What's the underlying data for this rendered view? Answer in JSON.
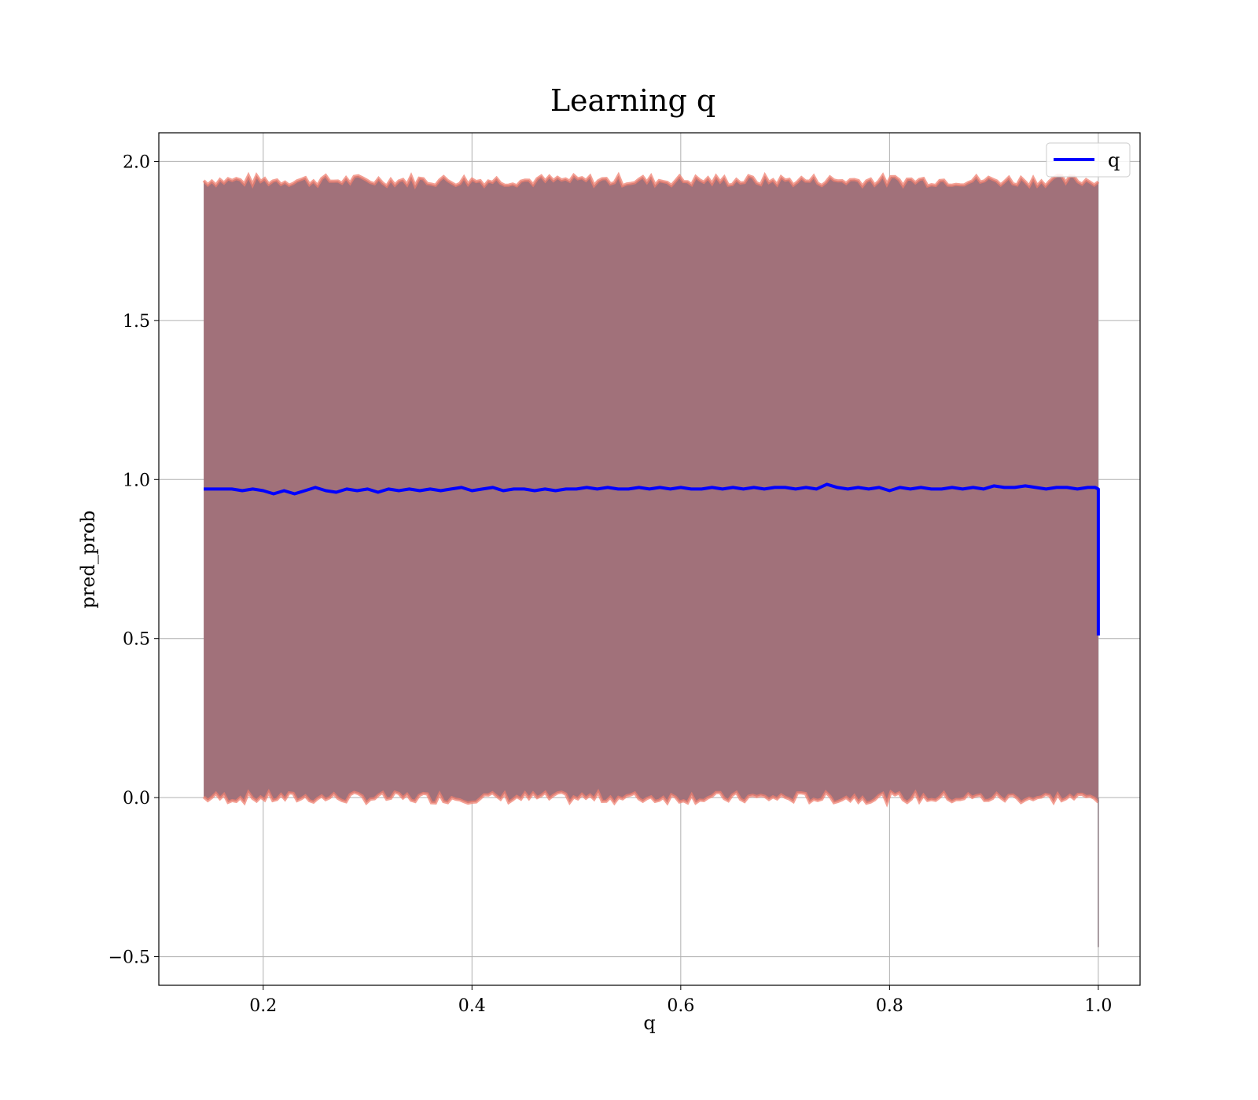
{
  "chart_data": {
    "type": "line",
    "title": "Learning q",
    "xlabel": "q",
    "ylabel": "pred_prob",
    "xlim": [
      0.1,
      1.04
    ],
    "ylim": [
      -0.59,
      2.09
    ],
    "xticks": [
      0.2,
      0.4,
      0.6,
      0.8,
      1.0
    ],
    "xtick_labels": [
      "0.2",
      "0.4",
      "0.6",
      "0.8",
      "1.0"
    ],
    "yticks": [
      -0.5,
      0.0,
      0.5,
      1.0,
      1.5,
      2.0
    ],
    "ytick_labels": [
      "−0.5",
      "0.0",
      "0.5",
      "1.0",
      "1.5",
      "2.0"
    ],
    "grid": true,
    "legend": {
      "position": "top-right",
      "entries": [
        "q"
      ]
    },
    "series": [
      {
        "name": "q",
        "color": "#0000ff",
        "x": [
          0.143,
          0.15,
          0.16,
          0.17,
          0.18,
          0.19,
          0.2,
          0.21,
          0.22,
          0.23,
          0.24,
          0.25,
          0.26,
          0.27,
          0.28,
          0.29,
          0.3,
          0.31,
          0.32,
          0.33,
          0.34,
          0.35,
          0.36,
          0.37,
          0.38,
          0.39,
          0.4,
          0.41,
          0.42,
          0.43,
          0.44,
          0.45,
          0.46,
          0.47,
          0.48,
          0.49,
          0.5,
          0.51,
          0.52,
          0.53,
          0.54,
          0.55,
          0.56,
          0.57,
          0.58,
          0.59,
          0.6,
          0.61,
          0.62,
          0.63,
          0.64,
          0.65,
          0.66,
          0.67,
          0.68,
          0.69,
          0.7,
          0.71,
          0.72,
          0.73,
          0.74,
          0.75,
          0.76,
          0.77,
          0.78,
          0.79,
          0.8,
          0.81,
          0.82,
          0.83,
          0.84,
          0.85,
          0.86,
          0.87,
          0.88,
          0.89,
          0.9,
          0.91,
          0.92,
          0.93,
          0.94,
          0.95,
          0.96,
          0.97,
          0.98,
          0.99,
          0.997,
          1.0,
          1.0
        ],
        "y": [
          0.97,
          0.97,
          0.97,
          0.97,
          0.965,
          0.97,
          0.965,
          0.955,
          0.965,
          0.955,
          0.965,
          0.975,
          0.965,
          0.96,
          0.97,
          0.965,
          0.97,
          0.96,
          0.97,
          0.965,
          0.97,
          0.965,
          0.97,
          0.965,
          0.97,
          0.975,
          0.965,
          0.97,
          0.975,
          0.965,
          0.97,
          0.97,
          0.965,
          0.97,
          0.965,
          0.97,
          0.97,
          0.975,
          0.97,
          0.975,
          0.97,
          0.97,
          0.975,
          0.97,
          0.975,
          0.97,
          0.975,
          0.97,
          0.97,
          0.975,
          0.97,
          0.975,
          0.97,
          0.975,
          0.97,
          0.975,
          0.975,
          0.97,
          0.975,
          0.97,
          0.985,
          0.975,
          0.97,
          0.975,
          0.97,
          0.975,
          0.965,
          0.975,
          0.97,
          0.975,
          0.97,
          0.97,
          0.975,
          0.97,
          0.975,
          0.97,
          0.98,
          0.975,
          0.975,
          0.98,
          0.975,
          0.97,
          0.975,
          0.975,
          0.97,
          0.975,
          0.975,
          0.97,
          0.51
        ]
      }
    ],
    "band": {
      "color": "#a1717a",
      "edge_color": "#f08070",
      "x_start": 0.143,
      "x_end": 1.0,
      "lower": 0.0,
      "upper": 1.94,
      "lower_tail_min": -0.47
    }
  }
}
